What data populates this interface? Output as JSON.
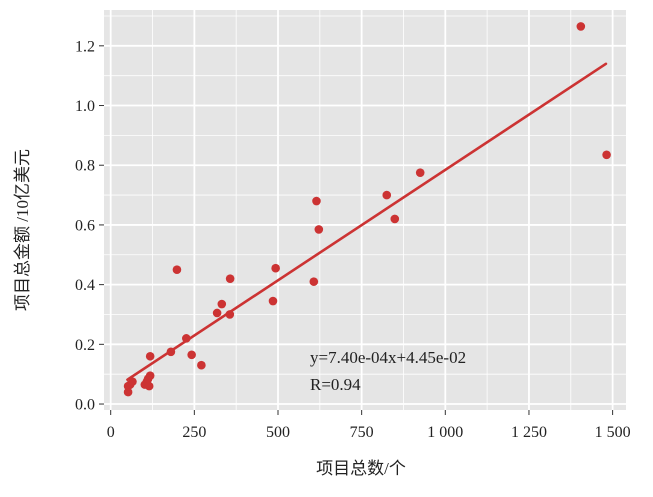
{
  "chart_data": {
    "type": "scatter",
    "xlabel": "项目总数/个",
    "ylabel": "项目总金额 /10亿美元",
    "xlim": [
      -20,
      1540
    ],
    "ylim": [
      -0.02,
      1.32
    ],
    "x_ticks": [
      0,
      250,
      500,
      750,
      1000,
      1250,
      1500
    ],
    "x_tick_labels": [
      "0",
      "250",
      "500",
      "750",
      "1 000",
      "1 250",
      "1 500"
    ],
    "y_ticks": [
      0.0,
      0.2,
      0.4,
      0.6,
      0.8,
      1.0,
      1.2
    ],
    "y_tick_labels": [
      "0.0",
      "0.2",
      "0.4",
      "0.6",
      "0.8",
      "1.0",
      "1.2"
    ],
    "grid": true,
    "background_color": "#e5e5e5",
    "grid_color": "#ffffff",
    "point_color": "#cc3333",
    "line_color": "#cc3333",
    "series": [
      {
        "points": [
          [
            52,
            0.04
          ],
          [
            52,
            0.06
          ],
          [
            58,
            0.065
          ],
          [
            65,
            0.075
          ],
          [
            102,
            0.065
          ],
          [
            108,
            0.075
          ],
          [
            112,
            0.085
          ],
          [
            115,
            0.06
          ],
          [
            118,
            0.095
          ],
          [
            118,
            0.16
          ],
          [
            180,
            0.175
          ],
          [
            198,
            0.45
          ],
          [
            226,
            0.22
          ],
          [
            242,
            0.165
          ],
          [
            271,
            0.13
          ],
          [
            318,
            0.305
          ],
          [
            332,
            0.335
          ],
          [
            356,
            0.3
          ],
          [
            357,
            0.42
          ],
          [
            485,
            0.345
          ],
          [
            493,
            0.455
          ],
          [
            607,
            0.41
          ],
          [
            615,
            0.68
          ],
          [
            622,
            0.585
          ],
          [
            825,
            0.7
          ],
          [
            849,
            0.62
          ],
          [
            925,
            0.775
          ],
          [
            1405,
            1.265
          ],
          [
            1482,
            0.835
          ]
        ]
      }
    ],
    "fit_line": {
      "slope": 0.00074,
      "intercept": 0.0445,
      "x_range": [
        50,
        1480
      ]
    },
    "annotations": [
      "y=7.40e-04x+4.45e-02",
      "R=0.94"
    ]
  }
}
